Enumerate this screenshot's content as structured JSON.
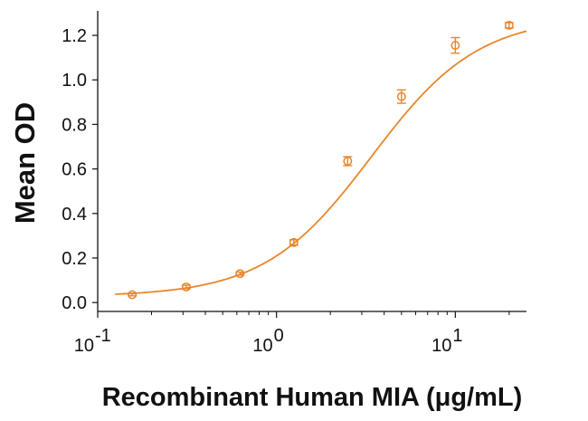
{
  "chart_data": {
    "type": "scatter",
    "title": "",
    "xlabel": "Recombinant Human MIA (μg/mL)",
    "ylabel": "Mean OD",
    "x_scale": "log",
    "xlim": [
      0.1,
      25
    ],
    "ylim": [
      -0.04,
      1.31
    ],
    "x_ticks": [
      {
        "value": 0.1,
        "base": "10",
        "exp": "-1"
      },
      {
        "value": 1,
        "base": "10",
        "exp": "0"
      },
      {
        "value": 10,
        "base": "10",
        "exp": "1"
      }
    ],
    "y_ticks": [
      {
        "value": 0.0,
        "label": "0.0"
      },
      {
        "value": 0.2,
        "label": "0.2"
      },
      {
        "value": 0.4,
        "label": "0.4"
      },
      {
        "value": 0.6,
        "label": "0.6"
      },
      {
        "value": 0.8,
        "label": "0.8"
      },
      {
        "value": 1.0,
        "label": "1.0"
      },
      {
        "value": 1.2,
        "label": "1.2"
      }
    ],
    "series": [
      {
        "x": [
          0.156,
          0.3125,
          0.625,
          1.25,
          2.5,
          5,
          10,
          20
        ],
        "y": [
          0.035,
          0.07,
          0.13,
          0.27,
          0.635,
          0.925,
          1.155,
          1.245
        ],
        "y_err": [
          0.005,
          0.008,
          0.007,
          0.012,
          0.02,
          0.03,
          0.035,
          0.012
        ]
      }
    ],
    "fit": {
      "model": "4-parameter logistic",
      "bottom": 0.027,
      "top": 1.285,
      "ec50": 3.4,
      "hill": 1.45
    },
    "color": "#E8862A",
    "grid": false,
    "legend": "none"
  }
}
